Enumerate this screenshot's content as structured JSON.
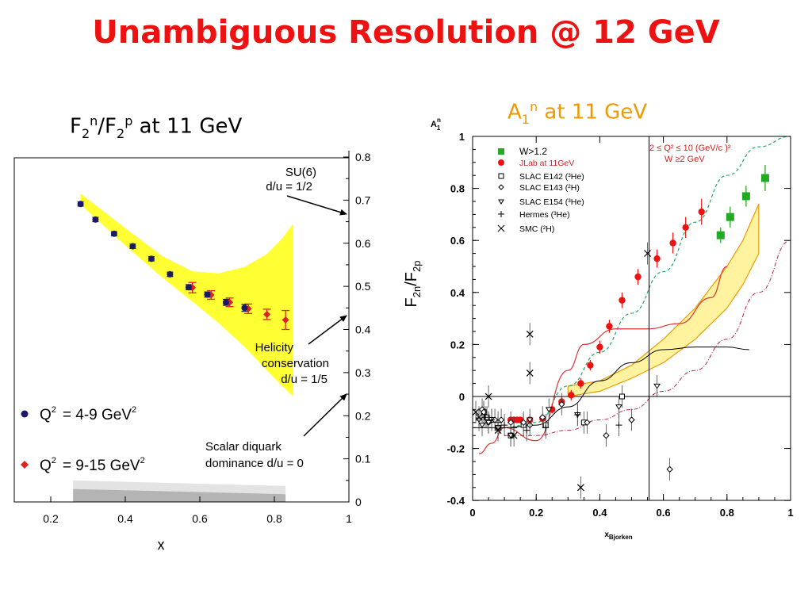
{
  "slide": {
    "title": "Unambiguous Resolution @ 12 GeV"
  },
  "left_panel": {
    "title": {
      "f": "F",
      "sub": "2",
      "n": "n",
      "slash": "/F",
      "sub2": "2",
      "p": "p",
      "rest": " at 11 GeV"
    },
    "annotations": {
      "su6_line1": "SU(6)",
      "su6_line2": "d/u = 1/2",
      "hel_line1": "Helicity",
      "hel_line2": "conservation",
      "hel_line3": "d/u = 1/5",
      "scal_line1": "Scalar diquark",
      "scal_line2": "dominance    d/u = 0"
    },
    "legend": {
      "q2_blue_a": "Q",
      "q2_blue_sup": "2",
      "q2_blue_b": "= 4-9 GeV",
      "q2_blue_sup2": "2",
      "q2_red_a": "Q",
      "q2_red_sup": "2",
      "q2_red_b": "= 9-15 GeV",
      "q2_red_sup2": "2"
    },
    "colors": {
      "band": "#ffff33",
      "blue_points": "#1a1a66",
      "red_points": "#dd2222",
      "shade_light": "#e3e3e3",
      "shade_dark": "#b4b4b4"
    }
  },
  "right_panel": {
    "title": {
      "a": "A",
      "sub": "1",
      "sup": "n",
      "rest": " at 11 GeV"
    },
    "legend": {
      "w12": "W>1.2",
      "jlab": "JLab at 11GeV",
      "e142": "SLAC E142 (³He)",
      "e143": "SLAC E143 (²H)",
      "e154": "SLAC E154  (³He)",
      "hermes": "Hermes  (³He)",
      "smc": "SMC (²H)"
    },
    "cuts": {
      "line1": "2  ≤ Q² ≤ 10 (GeV/c )²",
      "line2": "W ≥2 GeV"
    },
    "colors": {
      "green_points": "#22aa22",
      "red_points": "#ee1111",
      "band": "#fff3a0",
      "band_edge": "#ee9900",
      "cut_text": "#cc2222"
    }
  },
  "chart_data": [
    {
      "type": "scatter",
      "title": "F2n/F2p at 11 GeV",
      "xlabel": "x",
      "ylabel": "",
      "xlim": [
        0.1,
        1.0
      ],
      "ylim": [
        0,
        0.8
      ],
      "x_ticks": [
        "0.2",
        "0.4",
        "0.6",
        "0.8",
        "1"
      ],
      "y_ticks": [
        "0",
        "0.1",
        "0.2",
        "0.3",
        "0.4",
        "0.5",
        "0.6",
        "0.7",
        "0.8"
      ],
      "y_axis_side": "right",
      "series": [
        {
          "name": "Q² = 4-9 GeV²",
          "x": [
            0.28,
            0.32,
            0.37,
            0.42,
            0.47,
            0.52,
            0.57,
            0.62,
            0.67,
            0.72
          ],
          "y": [
            0.691,
            0.655,
            0.622,
            0.593,
            0.564,
            0.528,
            0.498,
            0.481,
            0.463,
            0.45
          ],
          "err": [
            0.005,
            0.005,
            0.005,
            0.005,
            0.005,
            0.005,
            0.006,
            0.006,
            0.007,
            0.008
          ]
        },
        {
          "name": "Q² = 9-15 GeV²",
          "x": [
            0.58,
            0.63,
            0.68,
            0.73,
            0.78,
            0.83
          ],
          "y": [
            0.497,
            0.48,
            0.463,
            0.448,
            0.435,
            0.422
          ],
          "err": [
            0.012,
            0.01,
            0.01,
            0.011,
            0.012,
            0.022
          ]
        }
      ],
      "band": {
        "x": [
          0.28,
          0.4,
          0.5,
          0.58,
          0.65,
          0.72,
          0.78,
          0.82,
          0.85
        ],
        "upper": [
          0.715,
          0.635,
          0.57,
          0.535,
          0.53,
          0.545,
          0.575,
          0.61,
          0.645
        ],
        "lower": [
          0.69,
          0.595,
          0.52,
          0.465,
          0.415,
          0.36,
          0.305,
          0.27,
          0.245
        ]
      },
      "shading": {
        "light": {
          "x": [
            0.26,
            0.83
          ],
          "top": [
            0.05,
            0.037
          ]
        },
        "dark": {
          "x": [
            0.26,
            0.83
          ],
          "top": [
            0.03,
            0.018
          ]
        }
      },
      "arrows": [
        {
          "label": "SU(6) d/u = 1/2",
          "y": 0.67
        },
        {
          "label": "Helicity conservation d/u = 1/5",
          "y": 0.43
        },
        {
          "label": "Scalar diquark dominance d/u = 0",
          "y": 0.25
        }
      ]
    },
    {
      "type": "scatter",
      "title": "A1n at 11 GeV",
      "xlabel": "x_Bjorken",
      "ylabel": "A1n",
      "ylabel_right": "F2n/F2p",
      "xlim": [
        0,
        1
      ],
      "ylim": [
        -0.4,
        1
      ],
      "x_ticks": [
        "0",
        "0.2",
        "0.4",
        "0.6",
        "0.8",
        "1"
      ],
      "y_ticks": [
        "-0.4",
        "-0.2",
        "0",
        "0.2",
        "0.4",
        "0.6",
        "0.8",
        "1"
      ],
      "series": [
        {
          "name": "W>1.2",
          "x": [
            0.78,
            0.81,
            0.86,
            0.92
          ],
          "y": [
            0.62,
            0.69,
            0.77,
            0.84
          ],
          "err": [
            0.03,
            0.04,
            0.04,
            0.05
          ]
        },
        {
          "name": "JLab at 11GeV",
          "x": [
            0.12,
            0.13,
            0.14,
            0.15,
            0.18,
            0.22,
            0.25,
            0.28,
            0.31,
            0.34,
            0.37,
            0.4,
            0.43,
            0.47,
            0.52,
            0.58,
            0.63,
            0.67,
            0.72
          ],
          "y": [
            -0.09,
            -0.09,
            -0.09,
            -0.09,
            -0.09,
            -0.085,
            -0.05,
            -0.02,
            0.005,
            0.05,
            0.12,
            0.19,
            0.27,
            0.37,
            0.46,
            0.53,
            0.59,
            0.65,
            0.71
          ],
          "err": [
            0.01,
            0.01,
            0.01,
            0.01,
            0.01,
            0.015,
            0.015,
            0.02,
            0.02,
            0.02,
            0.02,
            0.025,
            0.025,
            0.03,
            0.03,
            0.035,
            0.04,
            0.04,
            0.05
          ]
        },
        {
          "name": "SLAC E142 (3He)",
          "x": [
            0.035,
            0.045,
            0.06,
            0.08,
            0.12,
            0.16,
            0.23,
            0.35,
            0.47
          ],
          "y": [
            -0.06,
            -0.08,
            -0.09,
            -0.12,
            -0.15,
            -0.11,
            -0.11,
            -0.1,
            0.0
          ]
        },
        {
          "name": "SLAC E143 (2H)",
          "x": [
            0.03,
            0.035,
            0.05,
            0.07,
            0.09,
            0.12,
            0.16,
            0.18,
            0.22,
            0.28,
            0.36,
            0.42,
            0.5,
            0.62
          ],
          "y": [
            -0.05,
            -0.06,
            -0.1,
            -0.09,
            -0.09,
            -0.1,
            -0.1,
            -0.11,
            -0.08,
            -0.03,
            -0.1,
            -0.15,
            -0.09,
            -0.28
          ]
        },
        {
          "name": "SLAC E154 (3He)",
          "x": [
            0.02,
            0.03,
            0.05,
            0.08,
            0.12,
            0.18,
            0.24,
            0.33,
            0.46,
            0.58
          ],
          "y": [
            -0.09,
            -0.11,
            -0.1,
            -0.12,
            -0.15,
            -0.09,
            -0.05,
            -0.07,
            -0.04,
            0.04
          ]
        },
        {
          "name": "Hermes (3He)",
          "x": [
            0.04,
            0.06,
            0.08,
            0.1,
            0.13,
            0.17,
            0.23,
            0.33,
            0.46
          ],
          "y": [
            -0.08,
            -0.09,
            -0.1,
            -0.11,
            -0.12,
            -0.13,
            -0.12,
            -0.07,
            -0.11
          ]
        },
        {
          "name": "SMC (2H)",
          "x": [
            0.01,
            0.02,
            0.05,
            0.08,
            0.13,
            0.18,
            0.18,
            0.34,
            0.55
          ],
          "y": [
            -0.06,
            -0.08,
            0.0,
            -0.13,
            -0.15,
            0.09,
            0.24,
            -0.35,
            0.55
          ]
        }
      ],
      "band": {
        "x": [
          0.3,
          0.4,
          0.5,
          0.6,
          0.7,
          0.8,
          0.85,
          0.9
        ],
        "upper": [
          0.04,
          0.06,
          0.12,
          0.22,
          0.34,
          0.5,
          0.6,
          0.74
        ],
        "lower": [
          0.0,
          0.02,
          0.07,
          0.13,
          0.22,
          0.34,
          0.43,
          0.55
        ]
      },
      "curves": [
        {
          "name": "green dashed",
          "x": [
            0.0,
            0.1,
            0.2,
            0.3,
            0.4,
            0.5,
            0.6,
            0.7,
            0.8,
            0.9,
            1.0
          ],
          "y": [
            -0.12,
            -0.12,
            -0.1,
            0.04,
            0.17,
            0.32,
            0.48,
            0.67,
            0.85,
            0.96,
            1.0
          ]
        },
        {
          "name": "red solid",
          "x": [
            0.02,
            0.06,
            0.1,
            0.2,
            0.3,
            0.35,
            0.45,
            0.55,
            0.65,
            0.75,
            0.8
          ],
          "y": [
            -0.22,
            -0.18,
            -0.12,
            -0.17,
            0.1,
            0.2,
            0.26,
            0.26,
            0.28,
            0.38,
            0.5
          ]
        },
        {
          "name": "black solid",
          "x": [
            0.0,
            0.1,
            0.2,
            0.3,
            0.4,
            0.5,
            0.6,
            0.7,
            0.8,
            0.87
          ],
          "y": [
            -0.12,
            -0.12,
            -0.11,
            -0.04,
            0.06,
            0.13,
            0.18,
            0.19,
            0.19,
            0.18
          ]
        },
        {
          "name": "red dash-dot",
          "x": [
            0.1,
            0.2,
            0.3,
            0.4,
            0.5,
            0.6,
            0.7,
            0.8,
            0.9,
            1.0
          ],
          "y": [
            -0.15,
            -0.15,
            -0.13,
            -0.09,
            -0.05,
            0.02,
            0.1,
            0.22,
            0.4,
            0.6
          ]
        }
      ],
      "vertical_lines": [
        0.555
      ]
    }
  ]
}
